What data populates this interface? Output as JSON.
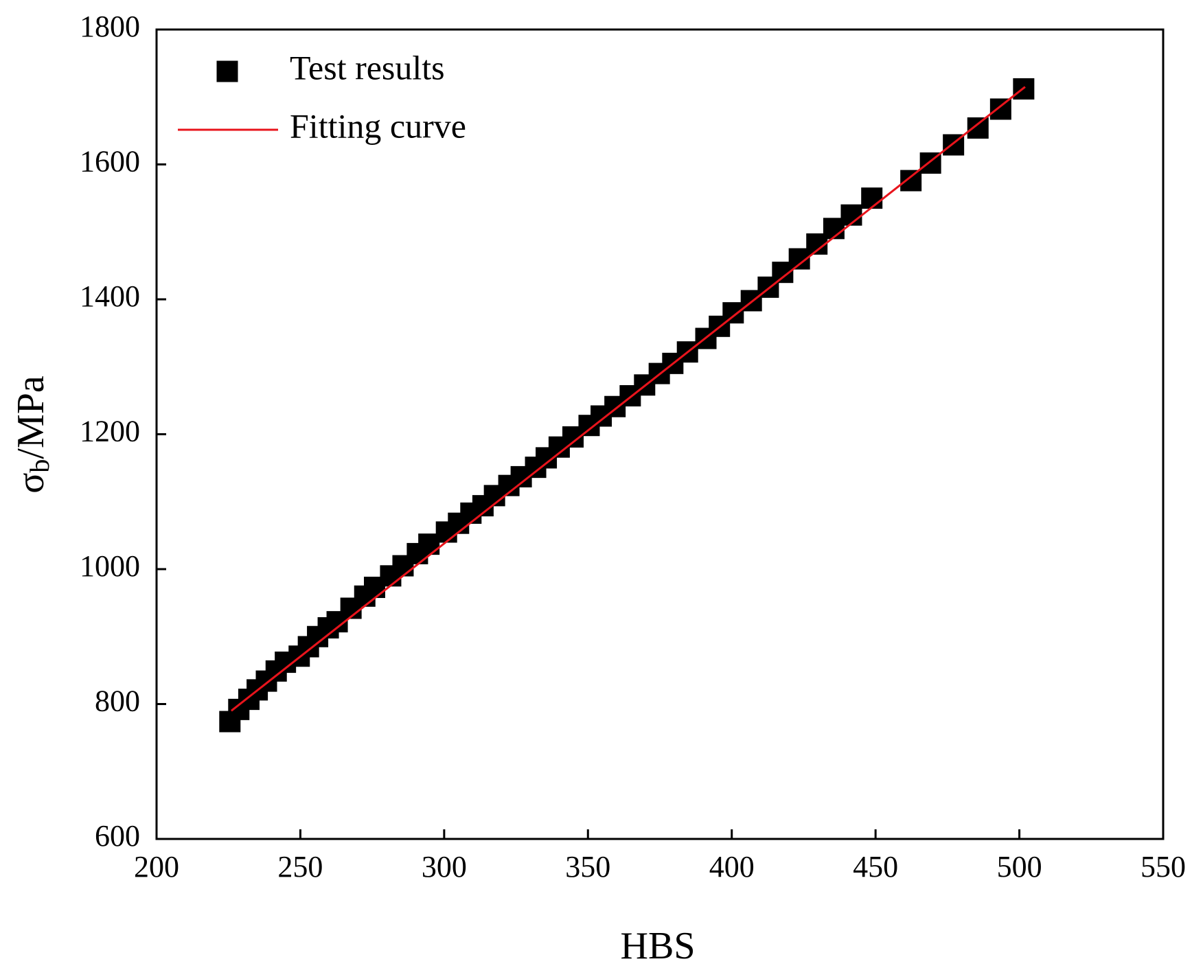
{
  "chart_data": {
    "type": "scatter",
    "x_label": "HBS",
    "y_label": {
      "symbol": "σ",
      "subscript": "b",
      "unit": "/MPa"
    },
    "xlim": [
      200,
      550
    ],
    "xticks": [
      200,
      250,
      300,
      350,
      400,
      450,
      500,
      550
    ],
    "ylim": [
      600,
      1800
    ],
    "yticks": [
      600,
      800,
      1000,
      1200,
      1400,
      1600,
      1800
    ],
    "legend": "upper left",
    "series": [
      {
        "name": "Test results",
        "color": "#000000",
        "marker": "square",
        "x": [
          225.5,
          228.6,
          232.1,
          235,
          238.2,
          241.6,
          244.8,
          249.6,
          252.8,
          256,
          259.7,
          262.8,
          267.6,
          272.4,
          275.8,
          281.4,
          285.7,
          290.7,
          294.7,
          300.8,
          305,
          309.3,
          313.5,
          317.5,
          322.5,
          326.8,
          331.8,
          335.5,
          340,
          344.8,
          350.4,
          354.6,
          359.4,
          364.7,
          369.7,
          374.8,
          379.5,
          384.6,
          391,
          395.7,
          400.5,
          406.8,
          412.7,
          417.7,
          423.5,
          429.6,
          435.5,
          441.6,
          448.7,
          462.3,
          469.1,
          477.1,
          485.6,
          493.5,
          501.5
        ],
        "values": [
          774,
          792,
          807,
          821,
          834,
          849,
          862,
          871,
          885,
          900,
          913,
          922,
          942,
          960,
          973,
          990,
          1005,
          1023,
          1037,
          1055,
          1068,
          1083,
          1094,
          1109,
          1124,
          1137,
          1151,
          1165,
          1181,
          1196,
          1213,
          1227,
          1241,
          1257,
          1273,
          1290,
          1305,
          1322,
          1342,
          1360,
          1380,
          1398,
          1418,
          1440,
          1460,
          1482,
          1505,
          1525,
          1550,
          1576,
          1602,
          1629,
          1654,
          1682,
          1712
        ]
      },
      {
        "name": "Fitting curve",
        "color": "#e8141c",
        "marker": "line",
        "x": [
          226,
          502
        ],
        "values": [
          790,
          1715
        ]
      }
    ]
  }
}
